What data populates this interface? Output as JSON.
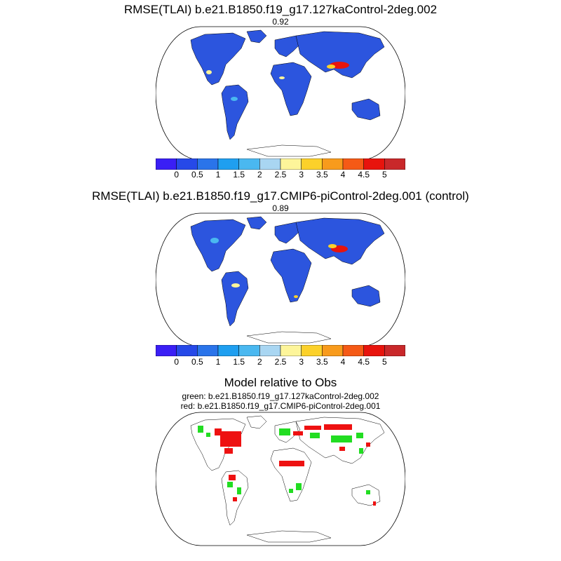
{
  "panel1": {
    "title": "RMSE(TLAI) b.e21.B1850.f19_g17.127kaControl-2deg.002",
    "score": "0.92"
  },
  "panel2": {
    "title": "RMSE(TLAI) b.e21.B1850.f19_g17.CMIP6-piControl-2deg.001 (control)",
    "score": "0.89"
  },
  "panel3": {
    "title": "Model relative to Obs",
    "legend_green": "green: b.e21.B1850.f19_g17.127kaControl-2deg.002",
    "legend_red": "red: b.e21.B1850.f19_g17.CMIP6-piControl-2deg.001"
  },
  "colorbar": {
    "labels": [
      "0",
      "0.5",
      "1",
      "1.5",
      "2",
      "2.5",
      "3",
      "3.5",
      "4",
      "4.5",
      "5"
    ],
    "colors": [
      "#3a1ff5",
      "#2649e8",
      "#2a74ea",
      "#1f9ff0",
      "#4ab8f0",
      "#a9d6f2",
      "#fdf59a",
      "#fcd12a",
      "#f89b1c",
      "#f55a16",
      "#e8140d",
      "#c9282a"
    ]
  },
  "colors": {
    "ocean": "#ffffff",
    "land_base": "#2c55de",
    "green_mark": "#22dd22",
    "red_mark": "#ee1111"
  }
}
